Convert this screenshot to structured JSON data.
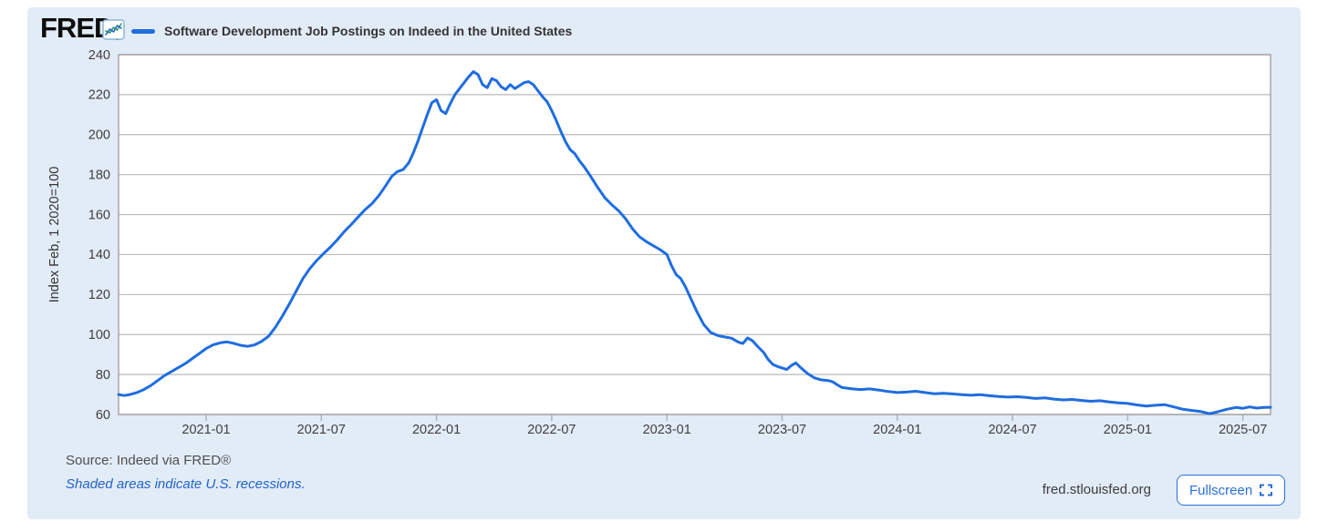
{
  "header": {
    "logo_text": "FRED",
    "logo_registered": "®",
    "legend_label": "Software Development Job Postings on Indeed in the United States"
  },
  "footer": {
    "source": "Source: Indeed via FRED®",
    "recession_note": "Shaded areas indicate U.S. recessions.",
    "site": "fred.stlouisfed.org",
    "fullscreen_label": "Fullscreen"
  },
  "colors": {
    "panel_bg": "#e2ecf7",
    "plot_bg": "#ffffff",
    "line": "#1f6ddf",
    "grid": "#bababa",
    "frame": "#9a9a9a",
    "tick_stub": "#a8b4c2",
    "tick_text": "#3f3f3f",
    "axis_title_text": "#333333",
    "accent_blue": "#2a6fd6",
    "logo_icon_border": "#8fb6d8",
    "logo_icon_green": "#2f9e63",
    "logo_icon_blue": "#2566c4"
  },
  "chart_data": {
    "type": "line",
    "title": "Software Development Job Postings on Indeed in the United States",
    "xlabel": "",
    "ylabel": "Index Feb, 1 2020=100",
    "ylim": [
      60,
      240
    ],
    "x_range": [
      2020.62,
      2025.62
    ],
    "grid": "on",
    "legend_position": "top-left",
    "yticks": [
      60,
      80,
      100,
      120,
      140,
      160,
      180,
      200,
      220,
      240
    ],
    "xticks": [
      {
        "t": 2021.0,
        "label": "2021-01"
      },
      {
        "t": 2021.5,
        "label": "2021-07"
      },
      {
        "t": 2022.0,
        "label": "2022-01"
      },
      {
        "t": 2022.5,
        "label": "2022-07"
      },
      {
        "t": 2023.0,
        "label": "2023-01"
      },
      {
        "t": 2023.5,
        "label": "2023-07"
      },
      {
        "t": 2024.0,
        "label": "2024-01"
      },
      {
        "t": 2024.5,
        "label": "2024-07"
      },
      {
        "t": 2025.0,
        "label": "2025-01"
      },
      {
        "t": 2025.5,
        "label": "2025-07"
      }
    ],
    "series": [
      {
        "name": "Software Development Job Postings on Indeed in the United States",
        "color": "#1f6ddf",
        "points": [
          [
            2020.62,
            70
          ],
          [
            2020.645,
            69.5
          ],
          [
            2020.67,
            70
          ],
          [
            2020.7,
            71
          ],
          [
            2020.73,
            72.5
          ],
          [
            2020.76,
            74.5
          ],
          [
            2020.79,
            77
          ],
          [
            2020.82,
            79.5
          ],
          [
            2020.85,
            81.5
          ],
          [
            2020.88,
            83.5
          ],
          [
            2020.91,
            85.5
          ],
          [
            2020.94,
            88
          ],
          [
            2020.97,
            90.5
          ],
          [
            2021.0,
            93
          ],
          [
            2021.03,
            94.8
          ],
          [
            2021.06,
            95.8
          ],
          [
            2021.09,
            96.3
          ],
          [
            2021.12,
            95.6
          ],
          [
            2021.15,
            94.6
          ],
          [
            2021.18,
            94.1
          ],
          [
            2021.21,
            94.8
          ],
          [
            2021.24,
            96.5
          ],
          [
            2021.27,
            99
          ],
          [
            2021.3,
            103.5
          ],
          [
            2021.33,
            109
          ],
          [
            2021.36,
            115
          ],
          [
            2021.39,
            121.5
          ],
          [
            2021.42,
            128
          ],
          [
            2021.45,
            133
          ],
          [
            2021.48,
            137
          ],
          [
            2021.51,
            140.5
          ],
          [
            2021.54,
            143.8
          ],
          [
            2021.57,
            147.5
          ],
          [
            2021.6,
            151.5
          ],
          [
            2021.63,
            155
          ],
          [
            2021.66,
            158.8
          ],
          [
            2021.69,
            162.5
          ],
          [
            2021.72,
            165.5
          ],
          [
            2021.75,
            169.5
          ],
          [
            2021.78,
            174.5
          ],
          [
            2021.805,
            179
          ],
          [
            2021.83,
            181.5
          ],
          [
            2021.855,
            182.5
          ],
          [
            2021.88,
            186
          ],
          [
            2021.9,
            191
          ],
          [
            2021.92,
            197
          ],
          [
            2021.94,
            203.5
          ],
          [
            2021.96,
            210
          ],
          [
            2021.98,
            216
          ],
          [
            2022.0,
            217.5
          ],
          [
            2022.02,
            212
          ],
          [
            2022.04,
            210.5
          ],
          [
            2022.06,
            215.5
          ],
          [
            2022.08,
            220
          ],
          [
            2022.1,
            223
          ],
          [
            2022.12,
            226
          ],
          [
            2022.14,
            229
          ],
          [
            2022.16,
            231.5
          ],
          [
            2022.18,
            230
          ],
          [
            2022.2,
            225
          ],
          [
            2022.22,
            223.5
          ],
          [
            2022.24,
            228
          ],
          [
            2022.26,
            227
          ],
          [
            2022.28,
            224
          ],
          [
            2022.3,
            222.5
          ],
          [
            2022.32,
            225
          ],
          [
            2022.34,
            223
          ],
          [
            2022.36,
            224.5
          ],
          [
            2022.38,
            226
          ],
          [
            2022.4,
            226.5
          ],
          [
            2022.42,
            225
          ],
          [
            2022.44,
            222
          ],
          [
            2022.46,
            219
          ],
          [
            2022.48,
            216.5
          ],
          [
            2022.5,
            212
          ],
          [
            2022.52,
            207
          ],
          [
            2022.54,
            201.5
          ],
          [
            2022.56,
            196.5
          ],
          [
            2022.58,
            192.5
          ],
          [
            2022.6,
            190.5
          ],
          [
            2022.62,
            187
          ],
          [
            2022.64,
            184
          ],
          [
            2022.67,
            179
          ],
          [
            2022.7,
            173.5
          ],
          [
            2022.73,
            168.5
          ],
          [
            2022.76,
            165
          ],
          [
            2022.79,
            162
          ],
          [
            2022.82,
            158
          ],
          [
            2022.85,
            153
          ],
          [
            2022.88,
            149
          ],
          [
            2022.91,
            146.5
          ],
          [
            2022.94,
            144.5
          ],
          [
            2022.97,
            142.5
          ],
          [
            2023.0,
            140
          ],
          [
            2023.02,
            134.5
          ],
          [
            2023.04,
            130
          ],
          [
            2023.06,
            128
          ],
          [
            2023.08,
            124
          ],
          [
            2023.1,
            119
          ],
          [
            2023.13,
            111.5
          ],
          [
            2023.16,
            105
          ],
          [
            2023.19,
            101
          ],
          [
            2023.22,
            99.5
          ],
          [
            2023.25,
            98.8
          ],
          [
            2023.28,
            98.2
          ],
          [
            2023.31,
            96.2
          ],
          [
            2023.33,
            95.5
          ],
          [
            2023.35,
            98.3
          ],
          [
            2023.37,
            97
          ],
          [
            2023.39,
            94.5
          ],
          [
            2023.42,
            91
          ],
          [
            2023.44,
            87.5
          ],
          [
            2023.46,
            85
          ],
          [
            2023.48,
            84
          ],
          [
            2023.5,
            83.3
          ],
          [
            2023.52,
            82.5
          ],
          [
            2023.54,
            84.5
          ],
          [
            2023.56,
            85.8
          ],
          [
            2023.58,
            83.5
          ],
          [
            2023.61,
            80.5
          ],
          [
            2023.64,
            78.3
          ],
          [
            2023.67,
            77.3
          ],
          [
            2023.7,
            77
          ],
          [
            2023.72,
            76.3
          ],
          [
            2023.74,
            74.8
          ],
          [
            2023.76,
            73.5
          ],
          [
            2023.8,
            72.9
          ],
          [
            2023.84,
            72.5
          ],
          [
            2023.88,
            72.8
          ],
          [
            2023.92,
            72.2
          ],
          [
            2023.96,
            71.5
          ],
          [
            2024.0,
            71
          ],
          [
            2024.04,
            71.2
          ],
          [
            2024.08,
            71.6
          ],
          [
            2024.12,
            71
          ],
          [
            2024.16,
            70.4
          ],
          [
            2024.2,
            70.6
          ],
          [
            2024.24,
            70.3
          ],
          [
            2024.28,
            69.9
          ],
          [
            2024.32,
            69.6
          ],
          [
            2024.36,
            69.9
          ],
          [
            2024.4,
            69.4
          ],
          [
            2024.44,
            69
          ],
          [
            2024.48,
            68.7
          ],
          [
            2024.52,
            68.9
          ],
          [
            2024.56,
            68.5
          ],
          [
            2024.6,
            68
          ],
          [
            2024.64,
            68.3
          ],
          [
            2024.68,
            67.7
          ],
          [
            2024.72,
            67.3
          ],
          [
            2024.76,
            67.5
          ],
          [
            2024.8,
            67
          ],
          [
            2024.84,
            66.6
          ],
          [
            2024.88,
            66.9
          ],
          [
            2024.92,
            66.3
          ],
          [
            2024.96,
            65.8
          ],
          [
            2025.0,
            65.5
          ],
          [
            2025.04,
            64.8
          ],
          [
            2025.08,
            64.2
          ],
          [
            2025.12,
            64.6
          ],
          [
            2025.16,
            64.9
          ],
          [
            2025.2,
            63.8
          ],
          [
            2025.24,
            62.6
          ],
          [
            2025.28,
            62
          ],
          [
            2025.32,
            61.4
          ],
          [
            2025.355,
            60.4
          ],
          [
            2025.39,
            61.3
          ],
          [
            2025.43,
            62.6
          ],
          [
            2025.47,
            63.5
          ],
          [
            2025.5,
            63.1
          ],
          [
            2025.53,
            63.8
          ],
          [
            2025.56,
            63.2
          ],
          [
            2025.59,
            63.5
          ],
          [
            2025.62,
            63.6
          ]
        ]
      }
    ]
  }
}
